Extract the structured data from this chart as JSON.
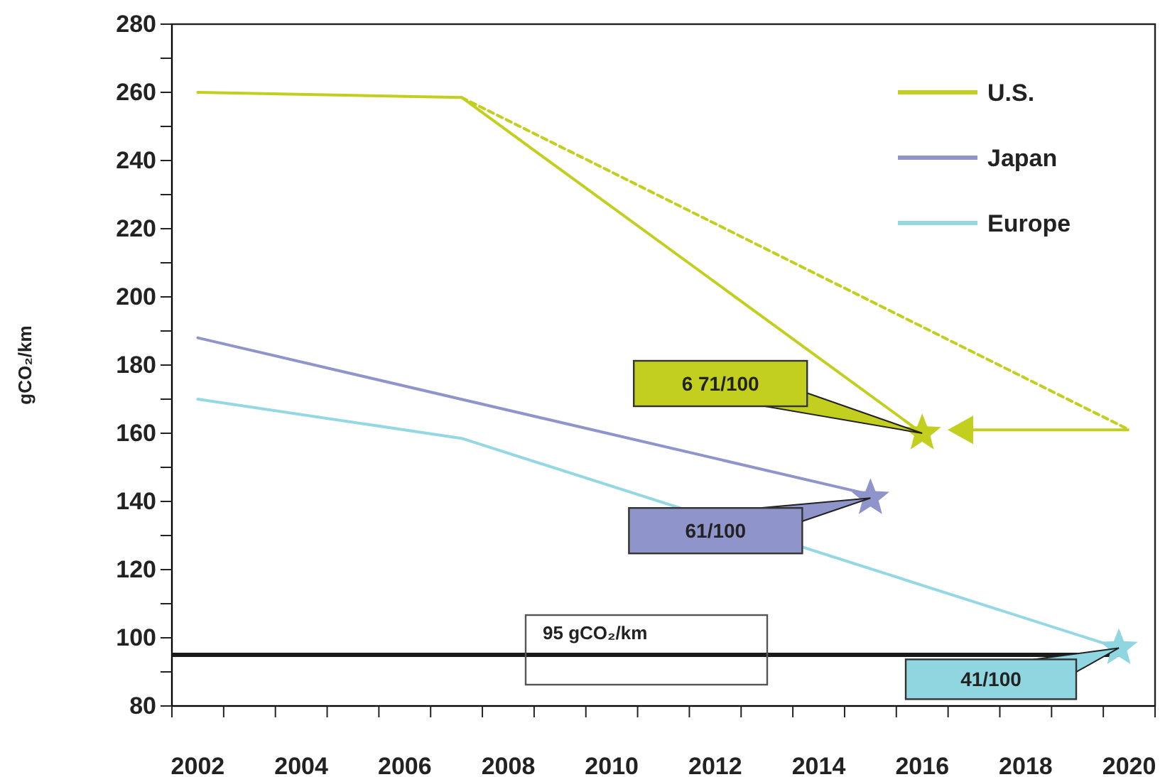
{
  "chart_data": {
    "type": "line",
    "ylabel": "gCO₂/km",
    "xlim": [
      2001.5,
      2020.5
    ],
    "ylim": [
      80,
      280
    ],
    "xticks": [
      {
        "value": 2002,
        "label": "2002"
      },
      {
        "value": 2004,
        "label": "2004"
      },
      {
        "value": 2006,
        "label": "2006"
      },
      {
        "value": 2008,
        "label": "2008"
      },
      {
        "value": 2010,
        "label": "2010"
      },
      {
        "value": 2012,
        "label": "2012"
      },
      {
        "value": 2014,
        "label": "2014"
      },
      {
        "value": 2016,
        "label": "2016"
      },
      {
        "value": 2018,
        "label": "2018"
      },
      {
        "value": 2020,
        "label": "2020"
      },
      {
        "value": 2001.5,
        "label": null
      },
      {
        "value": 2002.5,
        "label": null
      },
      {
        "value": 2003.5,
        "label": null
      },
      {
        "value": 2004.5,
        "label": null
      },
      {
        "value": 2005.5,
        "label": null
      },
      {
        "value": 2006.5,
        "label": null
      },
      {
        "value": 2007.5,
        "label": null
      },
      {
        "value": 2008.5,
        "label": null
      },
      {
        "value": 2009.5,
        "label": null
      },
      {
        "value": 2010.5,
        "label": null
      },
      {
        "value": 2011.5,
        "label": null
      },
      {
        "value": 2012.5,
        "label": null
      },
      {
        "value": 2013.5,
        "label": null
      },
      {
        "value": 2014.5,
        "label": null
      },
      {
        "value": 2015.5,
        "label": null
      },
      {
        "value": 2016.5,
        "label": null
      },
      {
        "value": 2017.5,
        "label": null
      },
      {
        "value": 2018.5,
        "label": null
      },
      {
        "value": 2019.5,
        "label": null
      },
      {
        "value": 2020.5,
        "label": null
      }
    ],
    "yticks": [
      80,
      {
        "value": 90,
        "label": null
      },
      100,
      {
        "value": 110,
        "label": null
      },
      120,
      {
        "value": 130,
        "label": null
      },
      140,
      {
        "value": 150,
        "label": null
      },
      160,
      {
        "value": 170,
        "label": null
      },
      180,
      {
        "value": 190,
        "label": null
      },
      200,
      {
        "value": 210,
        "label": null
      },
      220,
      {
        "value": 230,
        "label": null
      },
      240,
      {
        "value": 250,
        "label": null
      },
      260,
      {
        "value": 270,
        "label": null
      },
      280
    ],
    "grid": false,
    "legend": "top right",
    "series": [
      {
        "name": "U.S.",
        "color": "#c2cf1f",
        "x": [
          2002,
          2007.1,
          2016
        ],
        "values": [
          260,
          258.5,
          160
        ]
      },
      {
        "name": "Japan",
        "color": "#8f95cb",
        "x": [
          2002,
          2015
        ],
        "values": [
          188,
          142
        ]
      },
      {
        "name": "Europe",
        "color": "#93d8e2",
        "x": [
          2002,
          2007.1,
          2019.8
        ],
        "values": [
          170,
          158.5,
          97
        ]
      },
      {
        "type": "line",
        "color": "#c2cf1f",
        "line_style": "dashed",
        "x": [
          2007.1,
          2020
        ],
        "values": [
          258.5,
          161
        ]
      },
      {
        "type": "scatter",
        "marker": "star",
        "x": [
          2016,
          2015,
          2019.8
        ],
        "values": [
          160,
          141,
          97
        ],
        "colors": [
          "#c2cf1f",
          "#8f95cb",
          "#8fd6e0"
        ]
      }
    ],
    "ref_lines": [
      {
        "axis": "y",
        "value": 95,
        "label": "95 gCO₂/km",
        "color": "#1a1a1a"
      }
    ],
    "annotations": [
      {
        "text": "6 71/100",
        "x": 2016,
        "y": 160
      },
      {
        "text": "61/100",
        "x": 2015,
        "y": 141
      },
      {
        "text": "41/100",
        "x": 2019.8,
        "y": 97
      }
    ]
  }
}
